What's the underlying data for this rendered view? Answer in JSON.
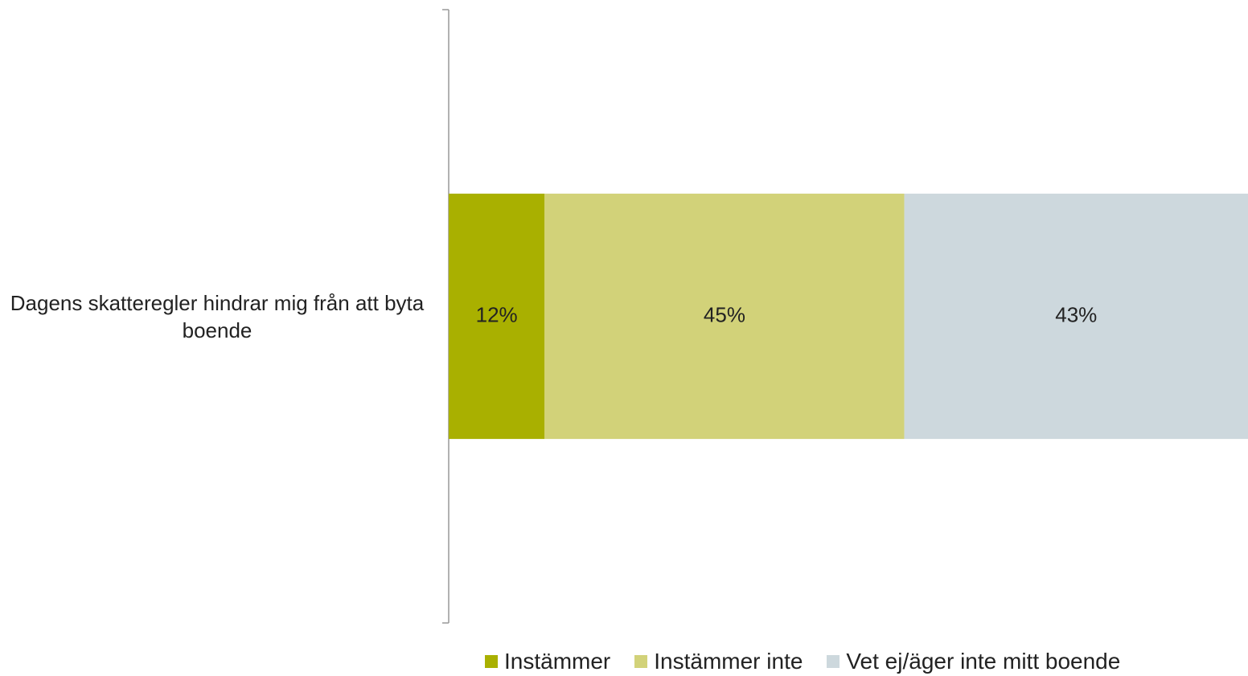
{
  "chart_data": {
    "type": "stacked_barh",
    "categories": [
      "Dagens skatteregler hindrar mig från att byta boende"
    ],
    "xlim": [
      0,
      100
    ],
    "legend": "bottom",
    "series": [
      {
        "name": "Instämmer",
        "color": "#a9b000",
        "values": [
          12
        ],
        "value_labels": [
          "12%"
        ]
      },
      {
        "name": "Instämmer inte",
        "color": "#d2d279",
        "values": [
          45
        ],
        "value_labels": [
          "45%"
        ]
      },
      {
        "name": "Vet ej/äger inte mitt boende",
        "color": "#cdd8dd",
        "values": [
          43
        ],
        "value_labels": [
          "43%"
        ]
      }
    ]
  }
}
